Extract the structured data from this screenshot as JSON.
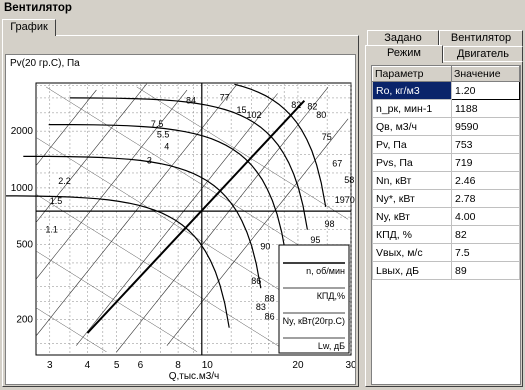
{
  "window": {
    "title": "Вентилятор"
  },
  "left_tab": {
    "label": "График"
  },
  "right_tabs": {
    "row1": [
      "Задано",
      "Вентилятор"
    ],
    "row2": [
      "Режим",
      "Двигатель"
    ],
    "active": "Режим"
  },
  "chart": {
    "ylabel": "Pv(20 гр.С), Па",
    "xlabel": "Q,тыс.м3/ч",
    "x_ticks": [
      "3",
      "4",
      "5",
      "6",
      "8",
      "10",
      "20",
      "30"
    ],
    "y_ticks": [
      "2000",
      "1000",
      "500",
      "200"
    ],
    "legend": [
      "n, об/мин",
      "КПД,%",
      "Ny, кВт(20гр.С)",
      "Lw, дБ"
    ]
  },
  "chart_data": {
    "type": "line",
    "xlabel": "Q,тыс.м3/ч",
    "ylabel": "Pv(20 гр.С), Па",
    "x_scale": "log",
    "y_scale": "log",
    "xlim": [
      2.7,
      30
    ],
    "ylim": [
      130,
      3600
    ],
    "x_ticks": [
      3,
      4,
      5,
      6,
      8,
      10,
      20,
      30
    ],
    "y_ticks": [
      200,
      500,
      1000,
      2000
    ],
    "grid": true,
    "curve_labels": [
      "84",
      "77",
      "15",
      "102",
      "82",
      "82",
      "80",
      "75",
      "67",
      "58",
      "1970",
      "7.5",
      "5.5",
      "4",
      "3",
      "2.2",
      "1.5",
      "1.1",
      "98",
      "95",
      "90",
      "86",
      "88",
      "83",
      "86"
    ],
    "operating_point": {
      "x": 9.59,
      "y": 753
    },
    "legend_entries": [
      "n, об/мин",
      "КПД,%",
      "Ny, кВт(20гр.С)",
      "Lw, дБ"
    ]
  },
  "params": {
    "headers": [
      "Параметр",
      "Значение"
    ],
    "rows": [
      [
        "Ro, кг/м3",
        "1.20"
      ],
      [
        "n_рк, мин-1",
        "1188"
      ],
      [
        "Qв, м3/ч",
        "9590"
      ],
      [
        "Pv, Па",
        "753"
      ],
      [
        "Pvs, Па",
        "719"
      ],
      [
        "Nn, кВт",
        "2.46"
      ],
      [
        "Ny*, кВт",
        "2.78"
      ],
      [
        "Ny, кВт",
        "4.00"
      ],
      [
        "КПД, %",
        "82"
      ],
      [
        "Vвых, м/с",
        "7.5"
      ],
      [
        "Lвых, дБ",
        "89"
      ]
    ]
  },
  "colors": {
    "selected_row": "#0a246a",
    "chart_lines": "#000000",
    "background": "#d4d0c8"
  }
}
